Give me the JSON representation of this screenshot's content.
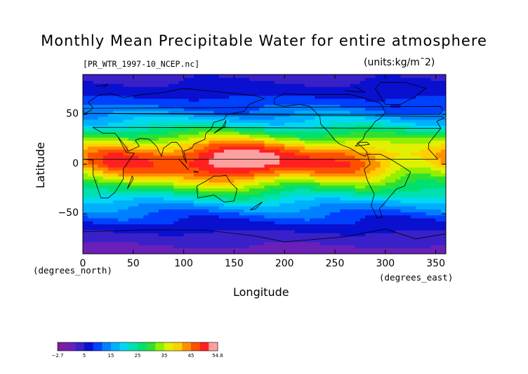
{
  "title": "Monthly Mean Precipitable Water for entire atmosphere",
  "source_file": "[PR_WTR_1997-10_NCEP.nc]",
  "units": "(units:kg/m¯2)",
  "x_axis": {
    "label": "Longitude",
    "unit_note": "(degrees_east)",
    "ticks": [
      "0",
      "50",
      "100",
      "150",
      "200",
      "250",
      "300",
      "350"
    ],
    "tick_values": [
      0,
      50,
      100,
      150,
      200,
      250,
      300,
      350
    ],
    "range": [
      0,
      360
    ]
  },
  "y_axis": {
    "label": "Latitude",
    "unit_note": "(degrees_north)",
    "ticks": [
      "50",
      "0",
      "−50"
    ],
    "tick_values": [
      50,
      0,
      -50
    ],
    "range": [
      -90,
      90
    ]
  },
  "colorbar": {
    "tick_labels": [
      "−2.7",
      "5",
      "15",
      "25",
      "35",
      "45",
      "54.8"
    ],
    "colors": [
      "#7a1fa0",
      "#6a20b8",
      "#3a20c8",
      "#0a10d0",
      "#0040ff",
      "#0080ff",
      "#00b0ff",
      "#00d8f0",
      "#00e0b0",
      "#00e070",
      "#30e030",
      "#90f000",
      "#e0f000",
      "#ffd000",
      "#ff9000",
      "#ff5000",
      "#ff2020",
      "#ffa0a0"
    ]
  },
  "chart_data": {
    "type": "heatmap",
    "title": "Monthly Mean Precipitable Water for entire atmosphere",
    "xlabel": "Longitude",
    "ylabel": "Latitude",
    "xlim": [
      0,
      360
    ],
    "ylim": [
      -90,
      90
    ],
    "colorbar_range": [
      -2.7,
      54.8
    ],
    "zonal_profile": {
      "latitude": [
        -90,
        -75,
        -60,
        -50,
        -40,
        -30,
        -20,
        -10,
        0,
        10,
        20,
        30,
        40,
        50,
        60,
        75,
        90
      ],
      "value": [
        2,
        5,
        9,
        13,
        18,
        25,
        33,
        42,
        48,
        47,
        40,
        30,
        22,
        16,
        12,
        8,
        6
      ]
    }
  }
}
